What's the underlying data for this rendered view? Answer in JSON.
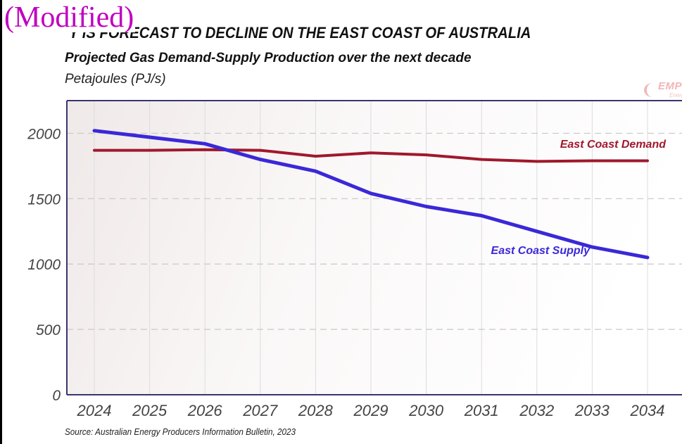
{
  "overlay_label": "(Modified)",
  "header": {
    "title": "Y IS FORECAST TO DECLINE ON THE EAST COAST OF AUSTRALIA",
    "subtitle": "Projected Gas Demand-Supply Production over the next decade",
    "unit_label": "Petajoules (PJ/s)"
  },
  "logo": {
    "name": "EMPIRE",
    "subtitle": "Energy"
  },
  "source": "Source: Australian Energy Producers Information Bulletin, 2023",
  "colors": {
    "demand": "#a0182c",
    "supply": "#3a28d8",
    "plot_border": "#3a3470",
    "grid": "#c8c8c8",
    "modified_label": "#c000c0"
  },
  "chart_data": {
    "type": "line",
    "x": [
      "2024",
      "2025",
      "2026",
      "2027",
      "2028",
      "2029",
      "2030",
      "2031",
      "2032",
      "2033",
      "2034"
    ],
    "ylim": [
      0,
      2250
    ],
    "yticks": [
      0,
      500,
      1000,
      1500,
      2000
    ],
    "grid": "horizontal dashed",
    "series": [
      {
        "name": "East Coast Demand",
        "color": "#a0182c",
        "values": [
          1870,
          1870,
          1875,
          1870,
          1825,
          1850,
          1835,
          1800,
          1785,
          1790,
          1790
        ]
      },
      {
        "name": "East Coast Supply",
        "color": "#3a28d8",
        "values": [
          2020,
          1970,
          1920,
          1800,
          1710,
          1540,
          1440,
          1370,
          1250,
          1130,
          1050
        ]
      }
    ]
  }
}
